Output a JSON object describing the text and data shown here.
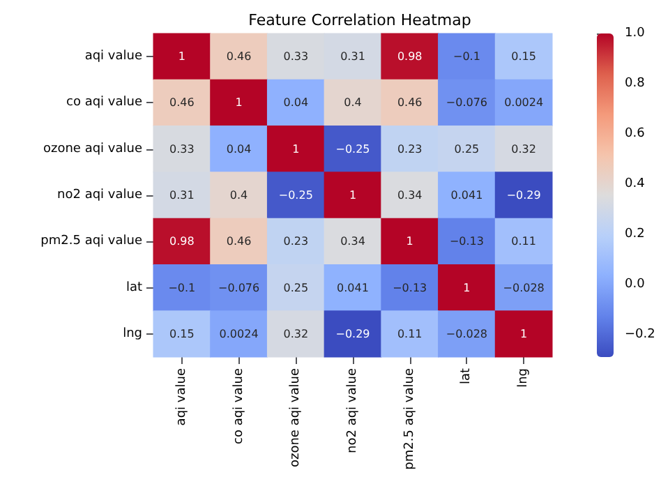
{
  "chart_data": {
    "type": "heatmap",
    "title": "Feature Correlation Heatmap",
    "categories": [
      "aqi value",
      "co aqi value",
      "ozone aqi value",
      "no2 aqi value",
      "pm2.5 aqi value",
      "lat",
      "lng"
    ],
    "y_categories": [
      "aqi value",
      "co aqi value",
      "ozone aqi value",
      "no2 aqi value",
      "pm2.5 aqi value",
      "lat",
      "lng"
    ],
    "cells": [
      [
        1,
        0.46,
        0.33,
        0.31,
        0.98,
        -0.1,
        0.15
      ],
      [
        0.46,
        1,
        0.04,
        0.4,
        0.46,
        -0.076,
        0.0024
      ],
      [
        0.33,
        0.04,
        1,
        -0.25,
        0.23,
        0.25,
        0.32
      ],
      [
        0.31,
        0.4,
        -0.25,
        1,
        0.34,
        0.041,
        -0.29
      ],
      [
        0.98,
        0.46,
        0.23,
        0.34,
        1,
        -0.13,
        0.11
      ],
      [
        -0.1,
        -0.076,
        0.25,
        0.041,
        -0.13,
        1,
        -0.028
      ],
      [
        0.15,
        0.0024,
        0.32,
        -0.29,
        0.11,
        -0.028,
        1
      ]
    ],
    "clim": [
      -0.29,
      1
    ],
    "cticks": [
      {
        "value": -0.2,
        "label": "−0.2"
      },
      {
        "value": 0,
        "label": "0.0"
      },
      {
        "value": 0.2,
        "label": "0.2"
      },
      {
        "value": 0.4,
        "label": "0.4"
      },
      {
        "value": 0.6,
        "label": "0.6"
      },
      {
        "value": 0.8,
        "label": "0.8"
      },
      {
        "value": 1,
        "label": "1.0"
      }
    ],
    "data_labels": true
  }
}
